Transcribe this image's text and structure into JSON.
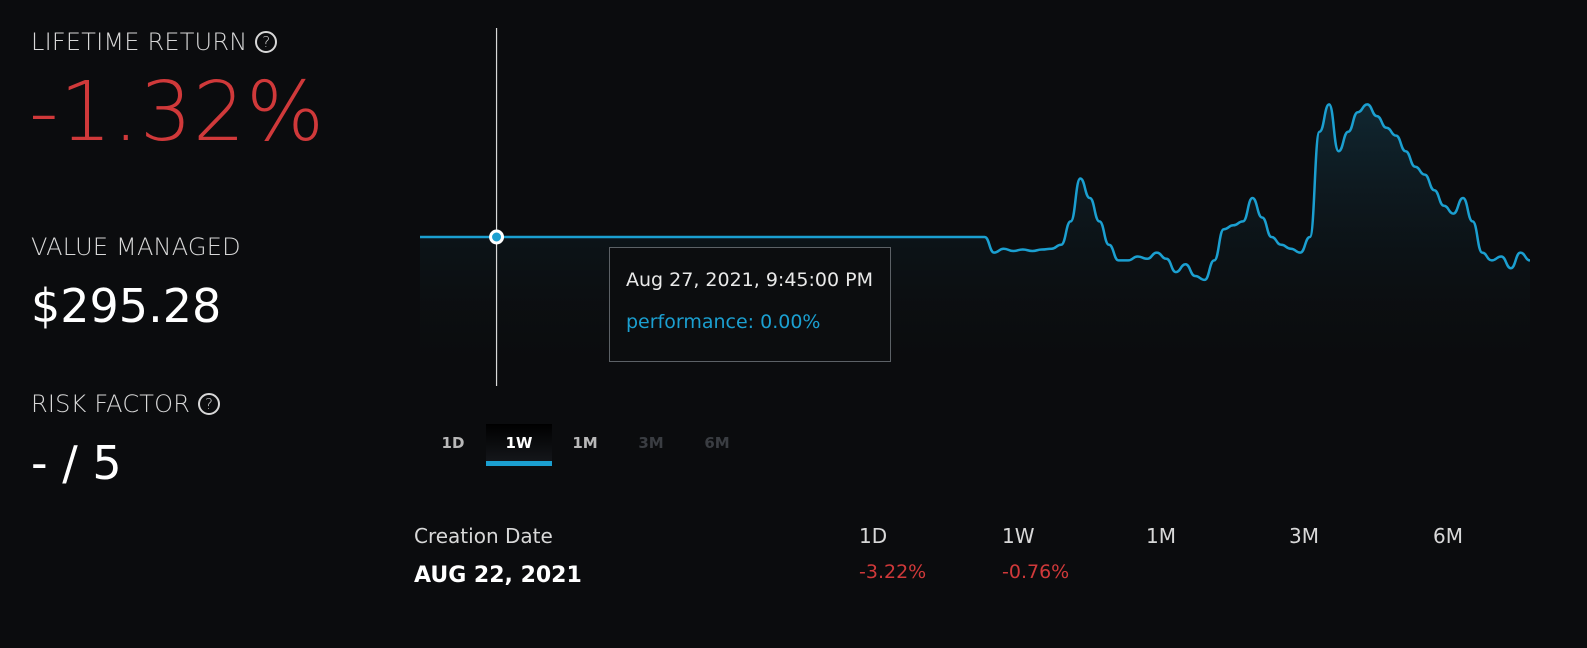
{
  "colors": {
    "negative": "#d0393a",
    "accent": "#1b9fd0",
    "range_active": "#ffffff",
    "range_enabled": "#b8b8b8",
    "range_disabled": "#3a3d42"
  },
  "summary": {
    "lifetime_return_label": "LIFETIME RETURN",
    "lifetime_return_value": "-1.32%",
    "value_managed_label": "VALUE MANAGED",
    "value_managed_value": "$295.28",
    "risk_factor_label": "RISK FACTOR",
    "risk_factor_value": "- / 5",
    "help_glyph": "?"
  },
  "tooltip": {
    "date": "Aug 27, 2021, 9:45:00 PM",
    "performance": "performance: 0.00%"
  },
  "ranges": [
    {
      "label": "1D",
      "state": "enabled"
    },
    {
      "label": "1W",
      "state": "active"
    },
    {
      "label": "1M",
      "state": "enabled"
    },
    {
      "label": "3M",
      "state": "disabled"
    },
    {
      "label": "6M",
      "state": "disabled"
    }
  ],
  "stats": {
    "creation_label": "Creation Date",
    "creation_value": "AUG 22, 2021",
    "periods": [
      {
        "label": "1D",
        "value": "-3.22%"
      },
      {
        "label": "1W",
        "value": "-0.76%"
      },
      {
        "label": "1M",
        "value": ""
      },
      {
        "label": "3M",
        "value": ""
      },
      {
        "label": "6M",
        "value": ""
      }
    ]
  },
  "chart_data": {
    "type": "area",
    "series": [
      {
        "values": [
          0,
          0,
          0,
          0,
          0,
          0,
          0,
          0,
          0,
          0,
          0,
          0,
          0,
          0,
          0,
          0,
          0,
          0,
          0,
          0,
          0,
          0,
          0,
          0,
          0,
          0,
          0,
          0,
          0,
          0,
          0,
          0,
          0,
          0,
          0,
          0,
          0,
          0,
          0,
          0,
          0,
          0,
          0,
          0,
          0,
          0,
          0,
          0,
          0,
          0,
          0,
          0,
          0,
          0,
          0,
          0,
          0,
          0,
          0,
          0,
          -0.2,
          -0.15,
          -0.18,
          -0.16,
          -0.18,
          -0.16,
          -0.15,
          -0.1,
          0.2,
          0.75,
          0.5,
          0.2,
          -0.1,
          -0.3,
          -0.3,
          -0.25,
          -0.28,
          -0.2,
          -0.28,
          -0.45,
          -0.35,
          -0.5,
          -0.55,
          -0.3,
          0.1,
          0.15,
          0.2,
          0.5,
          0.25,
          0.0,
          -0.1,
          -0.15,
          -0.2,
          0.0,
          1.35,
          1.7,
          1.1,
          1.35,
          1.6,
          1.7,
          1.55,
          1.4,
          1.3,
          1.1,
          0.9,
          0.8,
          0.6,
          0.4,
          0.3,
          0.5,
          0.2,
          -0.2,
          -0.3,
          -0.25,
          -0.4,
          -0.2,
          -0.3
        ]
      }
    ],
    "hover_index": 8,
    "grid": false,
    "legend": "none"
  }
}
